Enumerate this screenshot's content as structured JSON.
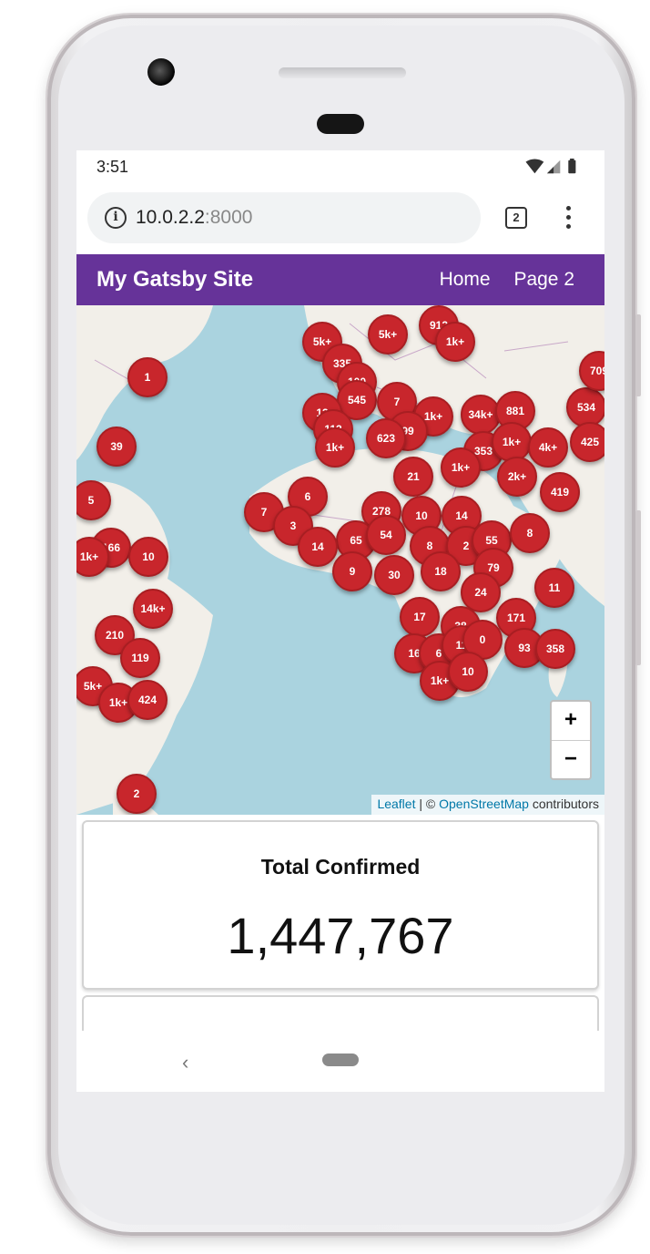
{
  "status_bar": {
    "time": "3:51"
  },
  "browser": {
    "url_host": "10.0.2.2",
    "url_port": ":8000",
    "tab_count": "2"
  },
  "site": {
    "title": "My Gatsby Site",
    "nav": [
      "Home",
      "Page 2"
    ]
  },
  "map": {
    "zoom_in": "+",
    "zoom_out": "−",
    "attribution": {
      "leaflet": "Leaflet",
      "separator": " | © ",
      "osm": "OpenStreetMap",
      "suffix": " contributors"
    },
    "clusters": [
      "5k+",
      "5k+",
      "912",
      "1k+",
      "335",
      "100",
      "545",
      "7",
      "1k+",
      "34k+",
      "881",
      "534",
      "709",
      "13",
      "113",
      "99",
      "623",
      "1k+",
      "353",
      "1k+",
      "4k+",
      "425",
      "39",
      "1",
      "21",
      "1k+",
      "2k+",
      "419",
      "7",
      "6",
      "278",
      "10",
      "14",
      "3",
      "65",
      "54",
      "8",
      "2",
      "55",
      "8",
      "14",
      "9",
      "30",
      "18",
      "79",
      "24",
      "11",
      "17",
      "38",
      "171",
      "16",
      "6",
      "11",
      "0",
      "93",
      "358",
      "1k+",
      "10",
      "210",
      "119",
      "14k+",
      "166",
      "10",
      "5",
      "1k+",
      "5k+",
      "1k+",
      "424",
      "2"
    ]
  },
  "stats": {
    "total_confirmed_label": "Total Confirmed",
    "total_confirmed_value": "1,447,767"
  },
  "colors": {
    "header": "#663399",
    "cluster": "#c8262c",
    "water": "#aad3df",
    "land": "#f2efe9"
  }
}
